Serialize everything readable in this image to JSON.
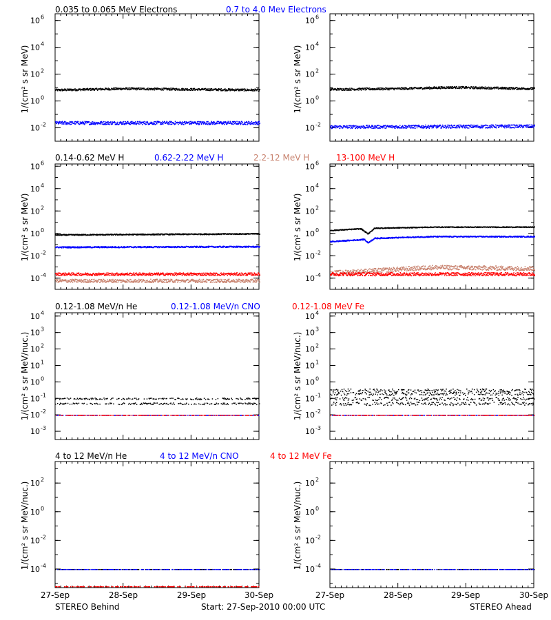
{
  "colors": {
    "black": "#000000",
    "blue": "#0000ff",
    "tan": "#c8826e",
    "red": "#ff0000"
  },
  "footer": {
    "left": "STEREO Behind",
    "center": "Start: 27-Sep-2010 00:00 UTC",
    "right": "STEREO Ahead"
  },
  "x_tick_labels": [
    "27-Sep",
    "28-Sep",
    "29-Sep",
    "30-Sep"
  ],
  "rows": [
    {
      "ylabel": "1/(cm² s sr MeV)",
      "legend": [
        {
          "text": "0.035 to 0.065 MeV Electrons",
          "color": "#000000"
        },
        {
          "text": "0.7 to 4.0 Mev Electrons",
          "color": "#0000ff"
        }
      ]
    },
    {
      "ylabel": "1/(cm² s sr MeV)",
      "legend": [
        {
          "text": "0.14-0.62 MeV H",
          "color": "#000000"
        },
        {
          "text": "0.62-2.22 MeV H",
          "color": "#0000ff"
        },
        {
          "text": "2.2-12 MeV H",
          "color": "#c8826e"
        },
        {
          "text": "13-100 MeV H",
          "color": "#ff0000"
        }
      ]
    },
    {
      "ylabel": "1/(cm² s sr MeV/nuc.)",
      "legend": [
        {
          "text": "0.12-1.08 MeV/n He",
          "color": "#000000"
        },
        {
          "text": "0.12-1.08 MeV/n CNO",
          "color": "#0000ff"
        },
        {
          "text": "0.12-1.08 MeV Fe",
          "color": "#ff0000"
        }
      ]
    },
    {
      "ylabel": "1/(cm² s sr MeV/nuc.)",
      "legend": [
        {
          "text": "4 to 12 MeV/n He",
          "color": "#000000"
        },
        {
          "text": "4 to 12 MeV/n CNO",
          "color": "#0000ff"
        },
        {
          "text": "4 to 12 MeV Fe",
          "color": "#ff0000"
        }
      ]
    }
  ],
  "chart_data": [
    {
      "type": "scatter",
      "panel": "STEREO Behind - electrons",
      "yscale": "log",
      "ylim_exp": [
        -3,
        6.5
      ],
      "yticks": [
        {
          "exp": -2,
          "label": "10",
          "sup": "-2"
        },
        {
          "exp": 0,
          "label": "10",
          "sup": "0"
        },
        {
          "exp": 2,
          "label": "10",
          "sup": "2"
        },
        {
          "exp": 4,
          "label": "10",
          "sup": "4"
        },
        {
          "exp": 6,
          "label": "10",
          "sup": "6"
        }
      ],
      "xlim_days": [
        0,
        3
      ],
      "series": [
        {
          "color": "#000000",
          "log10_flux": [
            [
              0,
              0.85
            ],
            [
              1,
              0.95
            ],
            [
              2,
              0.9
            ],
            [
              3,
              0.85
            ]
          ],
          "noise": 0.08
        },
        {
          "color": "#0000ff",
          "log10_flux": [
            [
              0,
              -1.6
            ],
            [
              3,
              -1.6
            ]
          ],
          "noise": 0.12
        }
      ]
    },
    {
      "type": "scatter",
      "panel": "STEREO Ahead - electrons",
      "yscale": "log",
      "ylim_exp": [
        -3,
        6.5
      ],
      "yticks": [
        {
          "exp": -2,
          "label": "10",
          "sup": "-2"
        },
        {
          "exp": 0,
          "label": "10",
          "sup": "0"
        },
        {
          "exp": 2,
          "label": "10",
          "sup": "2"
        },
        {
          "exp": 4,
          "label": "10",
          "sup": "4"
        },
        {
          "exp": 6,
          "label": "10",
          "sup": "6"
        }
      ],
      "xlim_days": [
        0,
        3
      ],
      "series": [
        {
          "color": "#000000",
          "log10_flux": [
            [
              0,
              0.9
            ],
            [
              1,
              0.95
            ],
            [
              1.8,
              1.05
            ],
            [
              3,
              0.95
            ]
          ],
          "noise": 0.08
        },
        {
          "color": "#0000ff",
          "log10_flux": [
            [
              0,
              -1.9
            ],
            [
              3,
              -1.85
            ]
          ],
          "noise": 0.12
        }
      ]
    },
    {
      "type": "scatter",
      "panel": "STEREO Behind - protons",
      "yscale": "log",
      "ylim_exp": [
        -5,
        6.2
      ],
      "yticks": [
        {
          "exp": -4,
          "label": "10",
          "sup": "-4"
        },
        {
          "exp": -2,
          "label": "10",
          "sup": "-2"
        },
        {
          "exp": 0,
          "label": "10",
          "sup": "0"
        },
        {
          "exp": 2,
          "label": "10",
          "sup": "2"
        },
        {
          "exp": 4,
          "label": "10",
          "sup": "4"
        },
        {
          "exp": 6,
          "label": "10",
          "sup": "6"
        }
      ],
      "xlim_days": [
        0,
        3
      ],
      "series": [
        {
          "color": "#000000",
          "log10_flux": [
            [
              0,
              -0.1
            ],
            [
              3,
              0.0
            ]
          ],
          "noise": 0.05
        },
        {
          "color": "#0000ff",
          "log10_flux": [
            [
              0,
              -1.2
            ],
            [
              3,
              -1.15
            ]
          ],
          "noise": 0.06
        },
        {
          "color": "#c8826e",
          "log10_flux": [
            [
              0,
              -4.2
            ],
            [
              3,
              -4.2
            ]
          ],
          "noise": 0.15
        },
        {
          "color": "#ff0000",
          "log10_flux": [
            [
              0,
              -3.6
            ],
            [
              3,
              -3.6
            ]
          ],
          "noise": 0.12
        }
      ]
    },
    {
      "type": "scatter",
      "panel": "STEREO Ahead - protons",
      "yscale": "log",
      "ylim_exp": [
        -5,
        6.2
      ],
      "yticks": [
        {
          "exp": -4,
          "label": "10",
          "sup": "-4"
        },
        {
          "exp": -2,
          "label": "10",
          "sup": "-2"
        },
        {
          "exp": 0,
          "label": "10",
          "sup": "0"
        },
        {
          "exp": 2,
          "label": "10",
          "sup": "2"
        },
        {
          "exp": 4,
          "label": "10",
          "sup": "4"
        },
        {
          "exp": 6,
          "label": "10",
          "sup": "6"
        }
      ],
      "xlim_days": [
        0,
        3
      ],
      "series": [
        {
          "color": "#000000",
          "log10_flux": [
            [
              0,
              0.3
            ],
            [
              0.45,
              0.45
            ],
            [
              0.55,
              0.0
            ],
            [
              0.65,
              0.5
            ],
            [
              1.5,
              0.6
            ],
            [
              3,
              0.6
            ]
          ],
          "noise": 0.04
        },
        {
          "color": "#0000ff",
          "log10_flux": [
            [
              0,
              -0.7
            ],
            [
              0.5,
              -0.5
            ],
            [
              0.55,
              -0.8
            ],
            [
              0.65,
              -0.4
            ],
            [
              1.5,
              -0.25
            ],
            [
              3,
              -0.25
            ]
          ],
          "noise": 0.05
        },
        {
          "color": "#c8826e",
          "log10_flux": [
            [
              0,
              -3.5
            ],
            [
              1.5,
              -3.0
            ],
            [
              3,
              -3.1
            ]
          ],
          "noise": 0.2
        },
        {
          "color": "#ff0000",
          "log10_flux": [
            [
              0,
              -3.6
            ],
            [
              3,
              -3.6
            ]
          ],
          "noise": 0.15
        }
      ]
    },
    {
      "type": "scatter",
      "panel": "STEREO Behind - heavy ions low energy",
      "yscale": "log",
      "ylim_exp": [
        -3.5,
        4.2
      ],
      "yticks": [
        {
          "exp": -3,
          "label": "10",
          "sup": "-3"
        },
        {
          "exp": -2,
          "label": "10",
          "sup": "-2"
        },
        {
          "exp": -1,
          "label": "10",
          "sup": "-1"
        },
        {
          "exp": 0,
          "label": "10",
          "sup": "0"
        },
        {
          "exp": 1,
          "label": "10",
          "sup": "1"
        },
        {
          "exp": 2,
          "label": "10",
          "sup": "2"
        },
        {
          "exp": 3,
          "label": "10",
          "sup": "3"
        },
        {
          "exp": 4,
          "label": "10",
          "sup": "4"
        }
      ],
      "xlim_days": [
        0,
        3
      ],
      "series": [
        {
          "color": "#000000",
          "levels": [
            -1.0,
            -1.3
          ],
          "noise": 0.05
        },
        {
          "color": "#0000ff",
          "levels": [
            -2.0
          ],
          "noise": 0.0
        },
        {
          "color": "#ff0000",
          "levels": [
            -2.0
          ],
          "noise": 0.0
        }
      ]
    },
    {
      "type": "scatter",
      "panel": "STEREO Ahead - heavy ions low energy",
      "yscale": "log",
      "ylim_exp": [
        -3.5,
        4.2
      ],
      "yticks": [
        {
          "exp": -3,
          "label": "10",
          "sup": "-3"
        },
        {
          "exp": -2,
          "label": "10",
          "sup": "-2"
        },
        {
          "exp": -1,
          "label": "10",
          "sup": "-1"
        },
        {
          "exp": 0,
          "label": "10",
          "sup": "0"
        },
        {
          "exp": 1,
          "label": "10",
          "sup": "1"
        },
        {
          "exp": 2,
          "label": "10",
          "sup": "2"
        },
        {
          "exp": 3,
          "label": "10",
          "sup": "3"
        },
        {
          "exp": 4,
          "label": "10",
          "sup": "4"
        }
      ],
      "xlim_days": [
        0,
        3
      ],
      "series": [
        {
          "color": "#000000",
          "levels": [
            -0.5,
            -0.7,
            -1.0,
            -1.3
          ],
          "noise": 0.1
        },
        {
          "color": "#0000ff",
          "levels": [
            -2.0
          ],
          "noise": 0.0
        },
        {
          "color": "#ff0000",
          "levels": [
            -2.0
          ],
          "noise": 0.0
        }
      ]
    },
    {
      "type": "scatter",
      "panel": "STEREO Behind - heavy ions high energy",
      "yscale": "log",
      "ylim_exp": [
        -5.3,
        3.5
      ],
      "yticks": [
        {
          "exp": -4,
          "label": "10",
          "sup": "-4"
        },
        {
          "exp": -2,
          "label": "10",
          "sup": "-2"
        },
        {
          "exp": 0,
          "label": "10",
          "sup": "0"
        },
        {
          "exp": 2,
          "label": "10",
          "sup": "2"
        }
      ],
      "xlim_days": [
        0,
        3
      ],
      "series": [
        {
          "color": "#000000",
          "levels": [
            -4.0
          ],
          "noise": 0.0
        },
        {
          "color": "#0000ff",
          "levels": [
            -4.0
          ],
          "noise": 0.0
        },
        {
          "color": "#ff0000",
          "levels": [
            -5.2
          ],
          "noise": 0.0
        }
      ]
    },
    {
      "type": "scatter",
      "panel": "STEREO Ahead - heavy ions high energy",
      "yscale": "log",
      "ylim_exp": [
        -5.3,
        3.5
      ],
      "yticks": [
        {
          "exp": -4,
          "label": "10",
          "sup": "-4"
        },
        {
          "exp": -2,
          "label": "10",
          "sup": "-2"
        },
        {
          "exp": 0,
          "label": "10",
          "sup": "0"
        },
        {
          "exp": 2,
          "label": "10",
          "sup": "2"
        }
      ],
      "xlim_days": [
        0,
        3
      ],
      "series": [
        {
          "color": "#000000",
          "levels": [
            -4.0
          ],
          "noise": 0.0
        },
        {
          "color": "#0000ff",
          "levels": [
            -4.0
          ],
          "noise": 0.0
        }
      ]
    }
  ]
}
